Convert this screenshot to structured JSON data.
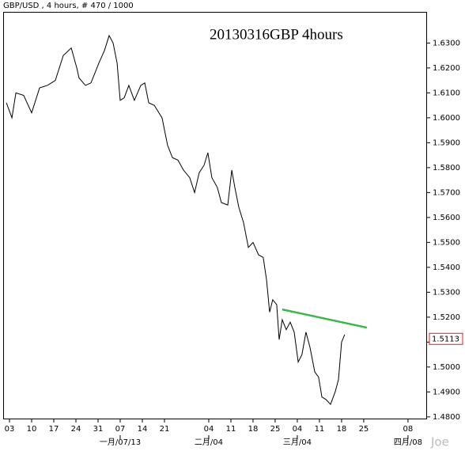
{
  "chart_data": {
    "type": "line",
    "title": "GBP/USD , 4 hours, # 470 / 1000",
    "annotation": "20130316GBP 4hours",
    "watermark": "Joe",
    "xlim": [
      -0.25,
      18.86
    ],
    "ylim": [
      1.479,
      1.6425
    ],
    "xticks": [
      {
        "value": 0,
        "label": "03"
      },
      {
        "value": 1,
        "label": "10"
      },
      {
        "value": 2,
        "label": "17"
      },
      {
        "value": 3,
        "label": "24"
      },
      {
        "value": 4,
        "label": "31"
      },
      {
        "value": 5,
        "label": "07"
      },
      {
        "value": 6,
        "label": "14"
      },
      {
        "value": 7,
        "label": "21"
      },
      {
        "value": 9,
        "label": "04"
      },
      {
        "value": 10,
        "label": "11"
      },
      {
        "value": 11,
        "label": "18"
      },
      {
        "value": 12,
        "label": "25"
      },
      {
        "value": 13,
        "label": "04"
      },
      {
        "value": 14,
        "label": "11"
      },
      {
        "value": 15,
        "label": "18"
      },
      {
        "value": 16,
        "label": "25"
      },
      {
        "value": 18,
        "label": "08"
      }
    ],
    "month_labels": [
      {
        "value": 5,
        "label": "一月/07/13"
      },
      {
        "value": 9,
        "label": "二月/04"
      },
      {
        "value": 13,
        "label": "三月/04"
      },
      {
        "value": 18,
        "label": "四月/08"
      }
    ],
    "yticks": [
      {
        "value": 1.48,
        "label": "1.4800"
      },
      {
        "value": 1.49,
        "label": "1.4900"
      },
      {
        "value": 1.5,
        "label": "1.5000"
      },
      {
        "value": 1.51,
        "label": "1.5100"
      },
      {
        "value": 1.52,
        "label": "1.5200"
      },
      {
        "value": 1.53,
        "label": "1.5300"
      },
      {
        "value": 1.54,
        "label": "1.5400"
      },
      {
        "value": 1.55,
        "label": "1.5500"
      },
      {
        "value": 1.56,
        "label": "1.5600"
      },
      {
        "value": 1.57,
        "label": "1.5700"
      },
      {
        "value": 1.58,
        "label": "1.5800"
      },
      {
        "value": 1.59,
        "label": "1.5900"
      },
      {
        "value": 1.6,
        "label": "1.6000"
      },
      {
        "value": 1.61,
        "label": "1.6100"
      },
      {
        "value": 1.62,
        "label": "1.6200"
      },
      {
        "value": 1.63,
        "label": "1.6300"
      }
    ],
    "last_price": 1.5113,
    "series": [
      {
        "name": "GBP/USD",
        "color": "#000000",
        "x": [
          -0.14,
          0.11,
          0.29,
          0.64,
          1,
          1.36,
          1.71,
          2.07,
          2.43,
          2.79,
          3.04,
          3.14,
          3.43,
          3.68,
          4.04,
          4.29,
          4.5,
          4.68,
          4.86,
          5,
          5.18,
          5.39,
          5.64,
          5.93,
          6.11,
          6.29,
          6.54,
          6.89,
          7.14,
          7.36,
          7.61,
          7.86,
          8.14,
          8.36,
          8.57,
          8.79,
          8.96,
          9.14,
          9.39,
          9.57,
          9.86,
          10.04,
          10.18,
          10.36,
          10.57,
          10.79,
          11,
          11.25,
          11.46,
          11.61,
          11.75,
          11.89,
          12.07,
          12.18,
          12.32,
          12.5,
          12.68,
          12.86,
          13.04,
          13.21,
          13.39,
          13.57,
          13.79,
          13.96,
          14.11,
          14.29,
          14.5,
          14.71,
          14.86,
          15,
          15.14
        ],
        "values": [
          1.606,
          1.6,
          1.61,
          1.609,
          1.602,
          1.612,
          1.613,
          1.615,
          1.625,
          1.628,
          1.62,
          1.616,
          1.613,
          1.614,
          1.622,
          1.627,
          1.633,
          1.63,
          1.622,
          1.607,
          1.608,
          1.613,
          1.607,
          1.613,
          1.614,
          1.606,
          1.605,
          1.6,
          1.589,
          1.584,
          1.583,
          1.579,
          1.576,
          1.57,
          1.578,
          1.581,
          1.586,
          1.576,
          1.572,
          1.566,
          1.565,
          1.579,
          1.572,
          1.564,
          1.558,
          1.548,
          1.55,
          1.545,
          1.544,
          1.535,
          1.522,
          1.527,
          1.525,
          1.511,
          1.519,
          1.515,
          1.518,
          1.514,
          1.502,
          1.505,
          1.514,
          1.508,
          1.498,
          1.496,
          1.488,
          1.487,
          1.485,
          1.49,
          1.495,
          1.51,
          1.513
        ]
      },
      {
        "name": "trend",
        "color": "#3cb54a",
        "x": [
          12.32,
          16.14
        ],
        "values": [
          1.5231,
          1.5158
        ]
      }
    ]
  }
}
